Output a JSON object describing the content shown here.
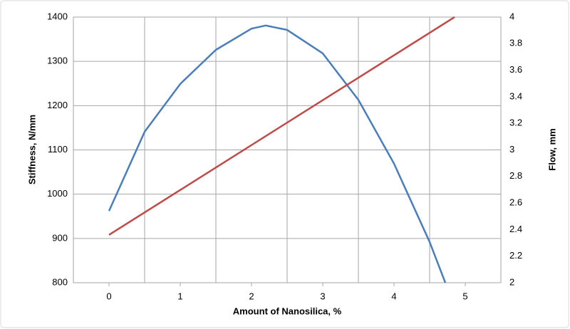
{
  "chart_data": {
    "type": "line",
    "x_label": "Amount of Nanosilica, %",
    "y_label": "Stiffness, N/mm",
    "y2_label": "Flow, mm",
    "xlim": [
      -0.5,
      5.5
    ],
    "xticks": [
      0,
      1,
      2,
      3,
      4,
      5
    ],
    "ylim": [
      800,
      1400
    ],
    "yticks": [
      800,
      900,
      1000,
      1100,
      1200,
      1300,
      1400
    ],
    "y2lim": [
      2,
      4
    ],
    "y2ticks": [
      2,
      2.2,
      2.4,
      2.6,
      2.8,
      3,
      3.2,
      3.4,
      3.6,
      3.8,
      4
    ],
    "grid": true,
    "series": [
      {
        "color": "#4a7ebb",
        "x": [
          0,
          0.5,
          1,
          1.5,
          2,
          2.2,
          2.5,
          3,
          3.5,
          4,
          4.5,
          4.72
        ],
        "values": [
          962,
          1141,
          1249,
          1326,
          1374,
          1381,
          1371,
          1318,
          1213,
          1069,
          892,
          800
        ]
      },
      {
        "color": "#be4b48",
        "axis": "y2",
        "x": [
          0,
          4.85
        ],
        "values": [
          2.36,
          4.0
        ]
      }
    ]
  }
}
